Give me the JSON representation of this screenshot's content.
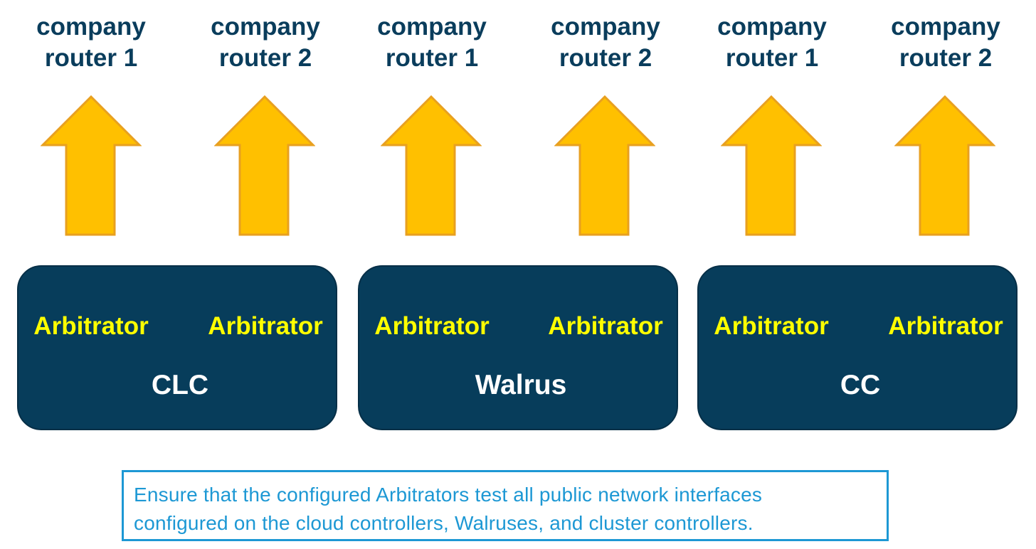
{
  "routers": [
    {
      "line1": "company",
      "line2": "router 1"
    },
    {
      "line1": "company",
      "line2": "router 2"
    },
    {
      "line1": "company",
      "line2": "router 1"
    },
    {
      "line1": "company",
      "line2": "router 2"
    },
    {
      "line1": "company",
      "line2": "router 1"
    },
    {
      "line1": "company",
      "line2": "router 2"
    }
  ],
  "nodes": [
    {
      "name": "CLC",
      "arbitrators": [
        "Arbitrator",
        "Arbitrator"
      ]
    },
    {
      "name": "Walrus",
      "arbitrators": [
        "Arbitrator",
        "Arbitrator"
      ]
    },
    {
      "name": "CC",
      "arbitrators": [
        "Arbitrator",
        "Arbitrator"
      ]
    }
  ],
  "note": {
    "line1": "Ensure that the configured Arbitrators test all public network interfaces",
    "line2": "configured on the cloud controllers, Walruses, and cluster controllers."
  },
  "colors": {
    "arrow_fill": "#ffc000",
    "arrow_stroke": "#e8a020",
    "node_fill": "#073d5b",
    "arbitrator_text": "#ffff00",
    "router_text": "#0a3d5c",
    "note_border": "#1d98d4"
  },
  "icons": {
    "arrow": "up-arrow-icon"
  }
}
